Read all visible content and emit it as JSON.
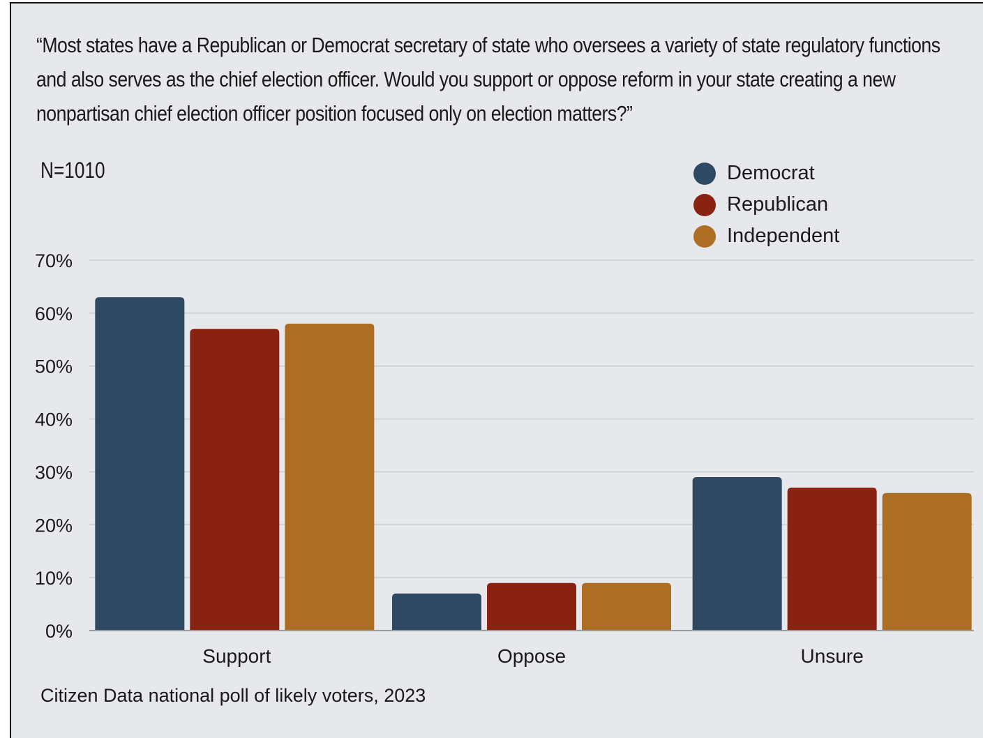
{
  "question": "“Most states have a Republican or Democrat secretary of state who oversees a variety of state regulatory functions and also serves as the chief election officer. Would you support or oppose reform in your state creating a new nonpartisan chief election officer position focused only on election matters?”",
  "sample_size": "N=1010",
  "source": "Citizen Data national poll of likely voters, 2023",
  "colors": {
    "background": "#e6e8eb",
    "gridline": "#c9cccf",
    "axis": "#9a9ea3"
  },
  "chart_data": {
    "type": "bar",
    "title": "",
    "xlabel": "",
    "ylabel": "",
    "categories": [
      "Support",
      "Oppose",
      "Unsure"
    ],
    "series": [
      {
        "name": "Democrat",
        "color": "#2e4a63",
        "values": [
          63,
          7,
          29
        ]
      },
      {
        "name": "Republican",
        "color": "#8a2212",
        "values": [
          57,
          9,
          27
        ]
      },
      {
        "name": "Independent",
        "color": "#ad6d23",
        "values": [
          58,
          9,
          26
        ]
      }
    ],
    "ylim": [
      0,
      70
    ],
    "yticks": [
      0,
      10,
      20,
      30,
      40,
      50,
      60,
      70
    ],
    "ytick_labels": [
      "0%",
      "10%",
      "20%",
      "30%",
      "40%",
      "50%",
      "60%",
      "70%"
    ],
    "grid": true,
    "legend_position": "top-right"
  }
}
